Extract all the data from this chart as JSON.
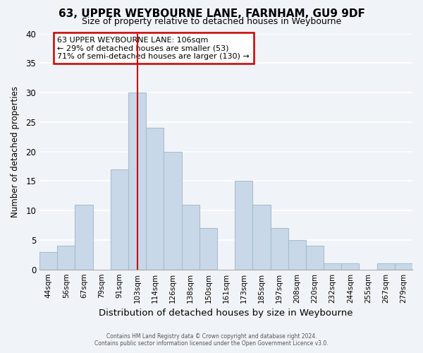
{
  "title": "63, UPPER WEYBOURNE LANE, FARNHAM, GU9 9DF",
  "subtitle": "Size of property relative to detached houses in Weybourne",
  "xlabel": "Distribution of detached houses by size in Weybourne",
  "ylabel": "Number of detached properties",
  "bar_labels": [
    "44sqm",
    "56sqm",
    "67sqm",
    "79sqm",
    "91sqm",
    "103sqm",
    "114sqm",
    "126sqm",
    "138sqm",
    "150sqm",
    "161sqm",
    "173sqm",
    "185sqm",
    "197sqm",
    "208sqm",
    "220sqm",
    "232sqm",
    "244sqm",
    "255sqm",
    "267sqm",
    "279sqm"
  ],
  "bar_values": [
    3,
    4,
    11,
    0,
    17,
    30,
    24,
    20,
    11,
    7,
    0,
    15,
    11,
    7,
    5,
    4,
    1,
    1,
    0,
    1,
    1
  ],
  "bar_color": "#c8d8e8",
  "bar_edge_color": "#a8bece",
  "vline_x_index": 5,
  "vline_color": "#cc0000",
  "ylim": [
    0,
    40
  ],
  "yticks": [
    0,
    5,
    10,
    15,
    20,
    25,
    30,
    35,
    40
  ],
  "annotation_title": "63 UPPER WEYBOURNE LANE: 106sqm",
  "annotation_line1": "← 29% of detached houses are smaller (53)",
  "annotation_line2": "71% of semi-detached houses are larger (130) →",
  "annotation_box_color": "#ffffff",
  "annotation_box_edge": "#cc0000",
  "footer1": "Contains HM Land Registry data © Crown copyright and database right 2024.",
  "footer2": "Contains public sector information licensed under the Open Government Licence v3.0.",
  "background_color": "#f0f4f8",
  "grid_color": "#ffffff"
}
